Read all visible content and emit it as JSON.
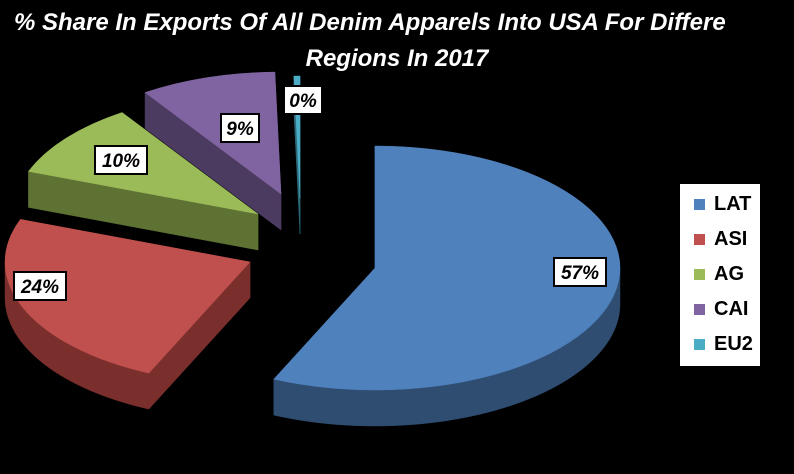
{
  "chart_data": {
    "type": "pie",
    "title_line1": "% Share In Exports Of All Denim Apparels Into USA For Differe",
    "title_line2": "Regions  In 2017",
    "series": [
      {
        "legend": "LAT",
        "value": 57,
        "label": "57%",
        "color": "#4F81BD",
        "side": "#2F4D71"
      },
      {
        "legend": "ASI",
        "value": 24,
        "label": "24%",
        "color": "#C0504D",
        "side": "#7A2F2D"
      },
      {
        "legend": "AG",
        "value": 10,
        "label": "10%",
        "color": "#9BBB59",
        "side": "#5E7233"
      },
      {
        "legend": "CAI",
        "value": 9,
        "label": "9%",
        "color": "#8064A2",
        "side": "#4C3B61"
      },
      {
        "legend": "EU2",
        "value": 0.4,
        "label": "0%",
        "color": "#4BACC6",
        "side": "#2A6878"
      }
    ],
    "legend_position": "right"
  }
}
